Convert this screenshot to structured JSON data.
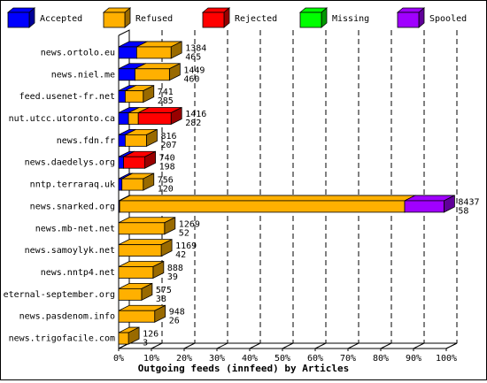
{
  "chart_data": {
    "type": "bar",
    "orientation": "horizontal",
    "stacked": true,
    "three_d": true,
    "title": "",
    "xlabel": "Outgoing feeds (innfeed) by Articles",
    "ylabel": "",
    "xlim": [
      0,
      100
    ],
    "x_ticks": [
      "0%",
      "10%",
      "20%",
      "30%",
      "40%",
      "50%",
      "60%",
      "70%",
      "80%",
      "90%",
      "100%"
    ],
    "legend_position": "top",
    "grid": "dashed vertical",
    "legend": [
      {
        "key": "accepted",
        "label": "Accepted",
        "color": "#0000ff"
      },
      {
        "key": "refused",
        "label": "Refused",
        "color": "#ffb000"
      },
      {
        "key": "rejected",
        "label": "Rejected",
        "color": "#ff0000"
      },
      {
        "key": "missing",
        "label": "Missing",
        "color": "#00ff00"
      },
      {
        "key": "spooled",
        "label": "Spooled",
        "color": "#a000ff"
      }
    ],
    "categories": [
      "news.ortolo.eu",
      "news.niel.me",
      "feed.usenet-fr.net",
      "nut.utcc.utoronto.ca",
      "news.fdn.fr",
      "news.daedelys.org",
      "nntp.terraraq.uk",
      "news.snarked.org",
      "news.mb-net.net",
      "news.samoylyk.net",
      "news.nntp4.net",
      "eternal-september.org",
      "news.pasdenom.info",
      "news.trigofacile.com"
    ],
    "annotations": [
      [
        "1384",
        "465"
      ],
      [
        "1449",
        "460"
      ],
      [
        "741",
        "285"
      ],
      [
        "1416",
        "282"
      ],
      [
        "816",
        "207"
      ],
      [
        "740",
        "198"
      ],
      [
        "756",
        "120"
      ],
      [
        "8437",
        "58"
      ],
      [
        "1269",
        "52"
      ],
      [
        "1169",
        "42"
      ],
      [
        "888",
        "39"
      ],
      [
        "575",
        "38"
      ],
      [
        "948",
        "26"
      ],
      [
        "126",
        "3"
      ]
    ],
    "series": [
      {
        "name": "Accepted",
        "color": "#0000ff",
        "values": [
          5.5,
          5.0,
          2.0,
          3.0,
          2.0,
          1.5,
          1.0,
          0.3,
          0,
          0,
          0,
          0,
          0,
          0
        ]
      },
      {
        "name": "Refused",
        "color": "#ffb000",
        "values": [
          10.5,
          10.5,
          5.5,
          3.0,
          6.5,
          0,
          6.5,
          87.0,
          14.0,
          13.0,
          10.5,
          7.0,
          11.0,
          3.0
        ]
      },
      {
        "name": "Rejected",
        "color": "#ff0000",
        "values": [
          0,
          0,
          0,
          10.0,
          0,
          6.5,
          0,
          0,
          0,
          0,
          0,
          0,
          0,
          0
        ]
      },
      {
        "name": "Missing",
        "color": "#00ff00",
        "values": [
          0,
          0,
          0,
          0,
          0,
          0,
          0,
          0,
          0,
          0,
          0,
          0,
          0,
          0
        ]
      },
      {
        "name": "Spooled",
        "color": "#a000ff",
        "values": [
          0,
          0,
          0,
          0,
          0,
          0,
          0,
          12.0,
          0,
          0,
          0,
          0,
          0,
          0
        ]
      }
    ]
  }
}
